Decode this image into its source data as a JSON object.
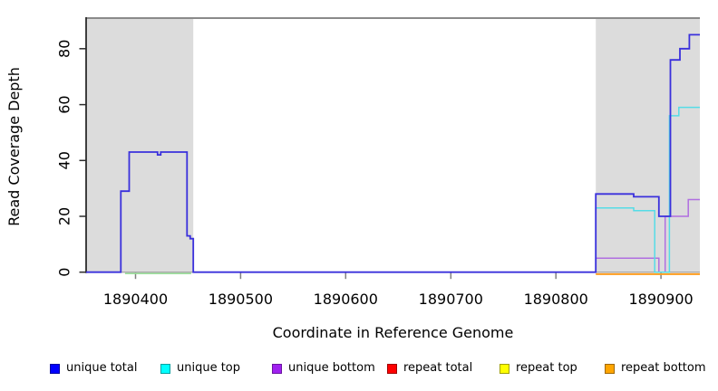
{
  "figure": {
    "background": "#ffffff"
  },
  "chart_data": {
    "type": "line",
    "subtype": "step",
    "title": "",
    "xlabel": "Coordinate in Reference Genome",
    "ylabel": "Read Coverage Depth",
    "xlim": [
      1890353,
      1890937
    ],
    "ylim": [
      0,
      91
    ],
    "x_ticks": [
      1890400,
      1890500,
      1890600,
      1890700,
      1890800,
      1890900
    ],
    "y_ticks": [
      0,
      20,
      40,
      60,
      80
    ],
    "grid": false,
    "legend_position": "bottom",
    "frame_top_line": true,
    "frame_top_color": "#8a8a8a",
    "axis_color": "#2b2b2b",
    "x_tick_color": "#808080",
    "shaded_regions": [
      {
        "x0": 1890353,
        "x1": 1890455,
        "color": "#dcdcdc"
      },
      {
        "x0": 1890838,
        "x1": 1890937,
        "color": "#dcdcdc"
      }
    ],
    "series": [
      {
        "name": "unique total",
        "color": "#3a30dc",
        "width": 1.8,
        "points": [
          [
            1890353,
            0
          ],
          [
            1890386,
            0
          ],
          [
            1890386,
            29
          ],
          [
            1890394,
            29
          ],
          [
            1890394,
            43
          ],
          [
            1890421,
            43
          ],
          [
            1890421,
            42
          ],
          [
            1890424,
            42
          ],
          [
            1890424,
            43
          ],
          [
            1890449,
            43
          ],
          [
            1890449,
            13
          ],
          [
            1890452,
            13
          ],
          [
            1890452,
            12
          ],
          [
            1890455,
            12
          ],
          [
            1890455,
            0
          ],
          [
            1890838,
            0
          ],
          [
            1890838,
            28
          ],
          [
            1890874,
            28
          ],
          [
            1890874,
            27
          ],
          [
            1890898,
            27
          ],
          [
            1890898,
            20
          ],
          [
            1890909,
            20
          ],
          [
            1890909,
            76
          ],
          [
            1890918,
            76
          ],
          [
            1890918,
            80
          ],
          [
            1890927,
            80
          ],
          [
            1890927,
            85
          ],
          [
            1890937,
            85
          ]
        ]
      },
      {
        "name": "unique top",
        "color": "#55dce6",
        "width": 1.5,
        "points": [
          [
            1890838,
            0
          ],
          [
            1890838,
            23
          ],
          [
            1890874,
            23
          ],
          [
            1890874,
            22
          ],
          [
            1890894,
            22
          ],
          [
            1890894,
            0
          ],
          [
            1890908,
            0
          ],
          [
            1890908,
            56
          ],
          [
            1890917,
            56
          ],
          [
            1890917,
            59
          ],
          [
            1890937,
            59
          ]
        ]
      },
      {
        "name": "unique bottom",
        "color": "#b06fe0",
        "width": 1.5,
        "points": [
          [
            1890838,
            0
          ],
          [
            1890838,
            5
          ],
          [
            1890898,
            5
          ],
          [
            1890898,
            0
          ],
          [
            1890904,
            0
          ],
          [
            1890904,
            20
          ],
          [
            1890926,
            20
          ],
          [
            1890926,
            26
          ],
          [
            1890937,
            26
          ]
        ]
      },
      {
        "name": "repeat total",
        "color": "#ff0000",
        "width": 1.5,
        "points": []
      },
      {
        "name": "repeat top",
        "color": "#ffff00",
        "width": 1.5,
        "points": []
      },
      {
        "name": "repeat bottom",
        "color": "#ff9d1e",
        "width": 2,
        "points": [
          [
            1890838,
            0
          ],
          [
            1890937,
            0
          ]
        ]
      }
    ],
    "unlabeled_segments": [
      {
        "color": "#98e098",
        "width": 1.5,
        "points": [
          [
            1890390,
            0
          ],
          [
            1890453,
            0
          ]
        ]
      }
    ]
  },
  "legend": {
    "items": [
      {
        "label": "unique total",
        "color": "#0000ff",
        "border": "#0000a0"
      },
      {
        "label": "unique top",
        "color": "#00ffff",
        "border": "#00a0a0"
      },
      {
        "label": "unique bottom",
        "color": "#a020f0",
        "border": "#6a14a0"
      },
      {
        "label": "repeat total",
        "color": "#ff0000",
        "border": "#a00000"
      },
      {
        "label": "repeat top",
        "color": "#ffff00",
        "border": "#a0a000"
      },
      {
        "label": "repeat bottom",
        "color": "#ffa500",
        "border": "#a06800"
      }
    ]
  }
}
